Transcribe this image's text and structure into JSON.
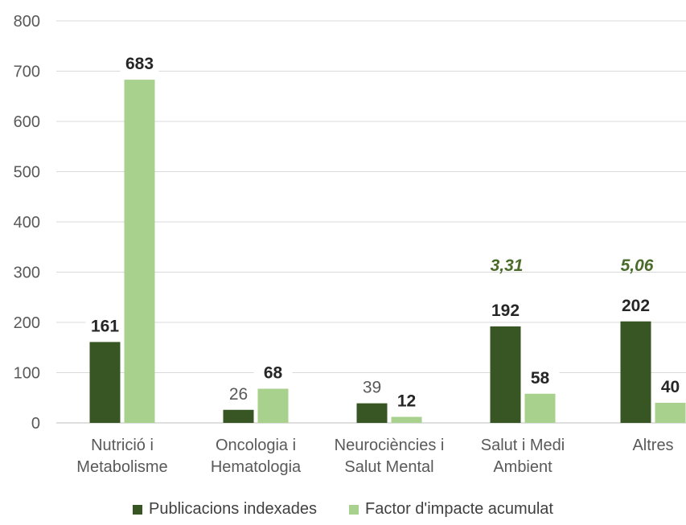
{
  "colors": {
    "series1": "#375623",
    "series2": "#a9d18e",
    "grid": "#d9d9d9",
    "axis": "#bfbfbf",
    "annotation": "#4a6b2a"
  },
  "chart_data": {
    "type": "bar",
    "categories": [
      [
        "Nutrició i",
        "Metabolisme"
      ],
      [
        "Oncologia i",
        "Hematologia"
      ],
      [
        "Neurociències i",
        "Salut Mental"
      ],
      [
        "Salut i Medi",
        "Ambient"
      ],
      [
        "Altres"
      ]
    ],
    "series": [
      {
        "name": "Publicacions indexades",
        "values": [
          161,
          26,
          39,
          192,
          202
        ]
      },
      {
        "name": "Factor d'impacte acumulat",
        "values": [
          683,
          68,
          12,
          58,
          40
        ]
      }
    ],
    "ylim": [
      0,
      800
    ],
    "yticks": [
      "0",
      "100",
      "200",
      "300",
      "400",
      "500",
      "600",
      "700",
      "800"
    ],
    "grid": true,
    "legend": "bottom",
    "annotations": [
      {
        "category": 3,
        "text": "3,31"
      },
      {
        "category": 4,
        "text": "5,06"
      }
    ]
  }
}
